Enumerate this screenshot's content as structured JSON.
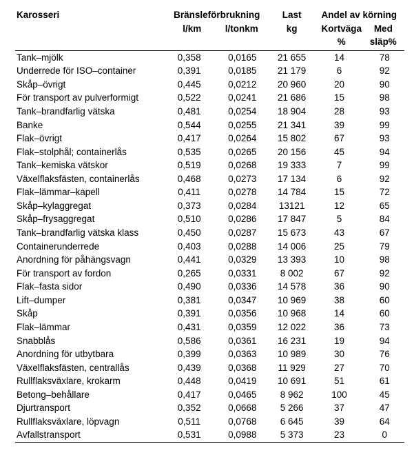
{
  "columns": {
    "karosseri": "Karosseri",
    "bransle_group": "Bränsleförbrukning",
    "bransle_lkm": "l/km",
    "bransle_ltonkm": "l/tonkm",
    "last": "Last",
    "last_unit": "kg",
    "andel_group": "Andel av körning",
    "kortvaga": "Kortväga",
    "kortvaga_unit": "%",
    "med_slap": "Med",
    "med_slap2": "släp%"
  },
  "rows": [
    {
      "k": "Tank–mjölk",
      "lpk": "0,358",
      "lpt": "0,0165",
      "last": "21 655",
      "kv": "14",
      "ms": "78"
    },
    {
      "k": "Underrede för ISO–container",
      "lpk": "0,391",
      "lpt": "0,0185",
      "last": "21 179",
      "kv": "6",
      "ms": "92"
    },
    {
      "k": "Skåp–övrigt",
      "lpk": "0,445",
      "lpt": "0,0212",
      "last": "20 960",
      "kv": "20",
      "ms": "90"
    },
    {
      "k": "För transport av pulverformigt",
      "lpk": "0,522",
      "lpt": "0,0241",
      "last": "21 686",
      "kv": "15",
      "ms": "98"
    },
    {
      "k": "Tank–brandfarlig vätska",
      "lpk": "0,481",
      "lpt": "0,0254",
      "last": "18 904",
      "kv": "28",
      "ms": "93"
    },
    {
      "k": "Banke",
      "lpk": "0,544",
      "lpt": "0,0255",
      "last": "21 341",
      "kv": "39",
      "ms": "99"
    },
    {
      "k": "Flak–övrigt",
      "lpk": "0,417",
      "lpt": "0,0264",
      "last": "15 802",
      "kv": "67",
      "ms": "93"
    },
    {
      "k": "Flak–stolphål; containerlås",
      "lpk": "0,535",
      "lpt": "0,0265",
      "last": "20 156",
      "kv": "45",
      "ms": "94"
    },
    {
      "k": "Tank–kemiska vätskor",
      "lpk": "0,519",
      "lpt": "0,0268",
      "last": "19 333",
      "kv": "7",
      "ms": "99"
    },
    {
      "k": "Växelflaksfästen, containerlås",
      "lpk": "0,468",
      "lpt": "0,0273",
      "last": "17 134",
      "kv": "6",
      "ms": "92"
    },
    {
      "k": "Flak–lämmar–kapell",
      "lpk": "0,411",
      "lpt": "0,0278",
      "last": "14 784",
      "kv": "15",
      "ms": "72"
    },
    {
      "k": "Skåp–kylaggregat",
      "lpk": "0,373",
      "lpt": "0,0284",
      "last": "13121",
      "kv": "12",
      "ms": "65"
    },
    {
      "k": "Skåp–frysaggregat",
      "lpk": "0,510",
      "lpt": "0,0286",
      "last": "17 847",
      "kv": "5",
      "ms": "84"
    },
    {
      "k": "Tank–brandfarlig vätska klass",
      "lpk": "0,450",
      "lpt": "0,0287",
      "last": "15 673",
      "kv": "43",
      "ms": "67"
    },
    {
      "k": "Containerunderrede",
      "lpk": "0,403",
      "lpt": "0,0288",
      "last": "14 006",
      "kv": "25",
      "ms": "79"
    },
    {
      "k": "Anordning för påhängsvagn",
      "lpk": "0,441",
      "lpt": "0,0329",
      "last": "13 393",
      "kv": "10",
      "ms": "98"
    },
    {
      "k": "För transport av fordon",
      "lpk": "0,265",
      "lpt": "0,0331",
      "last": "8 002",
      "kv": "67",
      "ms": "92"
    },
    {
      "k": "Flak–fasta sidor",
      "lpk": "0,490",
      "lpt": "0,0336",
      "last": "14 578",
      "kv": "36",
      "ms": "90"
    },
    {
      "k": "Lift–dumper",
      "lpk": "0,381",
      "lpt": "0,0347",
      "last": "10 969",
      "kv": "38",
      "ms": "60"
    },
    {
      "k": "Skåp",
      "lpk": "0,391",
      "lpt": "0,0356",
      "last": "10 968",
      "kv": "14",
      "ms": "60"
    },
    {
      "k": "Flak–lämmar",
      "lpk": "0,431",
      "lpt": "0,0359",
      "last": "12 022",
      "kv": "36",
      "ms": "73"
    },
    {
      "k": "Snabblås",
      "lpk": "0,586",
      "lpt": "0,0361",
      "last": "16 231",
      "kv": "19",
      "ms": "94"
    },
    {
      "k": "Anordning för utbytbara",
      "lpk": "0,399",
      "lpt": "0,0363",
      "last": "10 989",
      "kv": "30",
      "ms": "76"
    },
    {
      "k": "Växelflaksfästen, centrallås",
      "lpk": "0,439",
      "lpt": "0,0368",
      "last": "11 929",
      "kv": "27",
      "ms": "70"
    },
    {
      "k": "Rullflaksväxlare, krokarm",
      "lpk": "0,448",
      "lpt": "0,0419",
      "last": "10 691",
      "kv": "51",
      "ms": "61"
    },
    {
      "k": "Betong–behållare",
      "lpk": "0,417",
      "lpt": "0,0465",
      "last": "8 962",
      "kv": "100",
      "ms": "45"
    },
    {
      "k": "Djurtransport",
      "lpk": "0,352",
      "lpt": "0,0668",
      "last": "5 266",
      "kv": "37",
      "ms": "47"
    },
    {
      "k": "Rullflaksväxlare, löpvagn",
      "lpk": "0,511",
      "lpt": "0,0768",
      "last": "6 645",
      "kv": "39",
      "ms": "64"
    },
    {
      "k": "Avfallstransport",
      "lpk": "0,531",
      "lpt": "0,0988",
      "last": "5 373",
      "kv": "23",
      "ms": "0"
    }
  ]
}
